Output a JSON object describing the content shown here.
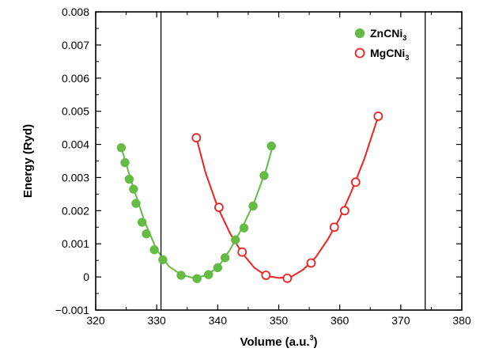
{
  "chart_data": {
    "type": "scatter",
    "title": "",
    "xlabel": "Volume (a.u.",
    "xlabel_sup": "3",
    "xlabel_close": ")",
    "ylabel": "Energy (Ryd)",
    "xlim": [
      320,
      380
    ],
    "ylim": [
      -0.001,
      0.008
    ],
    "x_ticks": [
      320,
      330,
      340,
      350,
      360,
      370,
      380
    ],
    "y_ticks": [
      -0.001,
      0,
      0.001,
      0.002,
      0.003,
      0.004,
      0.005,
      0.006,
      0.007,
      0.008
    ],
    "x_tick_labels": [
      "320",
      "330",
      "340",
      "350",
      "360",
      "370",
      "380"
    ],
    "y_tick_labels": [
      "−0.001",
      "0",
      "0.001",
      "0.002",
      "0.003",
      "0.004",
      "0.005",
      "0.006",
      "0.007",
      "0.008"
    ],
    "vertical_lines": [
      330.7,
      374
    ],
    "legend_position": "top-right",
    "series": [
      {
        "name": "ZnCNi",
        "name_sub": "3",
        "color": "#66bb44",
        "marker": "filled-circle",
        "points": [
          [
            324.2,
            0.0039
          ],
          [
            324.8,
            0.00345
          ],
          [
            325.5,
            0.00295
          ],
          [
            326.2,
            0.00265
          ],
          [
            326.6,
            0.00222
          ],
          [
            327.6,
            0.00165
          ],
          [
            328.3,
            0.0013
          ],
          [
            329.6,
            0.00082
          ],
          [
            331.0,
            0.00052
          ],
          [
            334.0,
            5e-05
          ],
          [
            336.6,
            -5e-05
          ],
          [
            338.5,
            7e-05
          ],
          [
            340.0,
            0.00028
          ],
          [
            341.2,
            0.00058
          ],
          [
            342.9,
            0.00112
          ],
          [
            344.3,
            0.00148
          ],
          [
            345.8,
            0.00214
          ],
          [
            347.6,
            0.00306
          ],
          [
            348.8,
            0.00395
          ]
        ],
        "fit": [
          [
            324.2,
            0.0039
          ],
          [
            326.0,
            0.0028
          ],
          [
            328.0,
            0.00168
          ],
          [
            330.0,
            0.00082
          ],
          [
            332.0,
            0.00032
          ],
          [
            334.0,
            7e-05
          ],
          [
            336.0,
            -3e-05
          ],
          [
            338.0,
            4e-05
          ],
          [
            340.0,
            0.00028
          ],
          [
            342.0,
            0.00082
          ],
          [
            344.0,
            0.00148
          ],
          [
            346.0,
            0.00226
          ],
          [
            348.0,
            0.00328
          ],
          [
            349.0,
            0.00395
          ]
        ]
      },
      {
        "name": "MgCNi",
        "name_sub": "3",
        "color": "#ee2222",
        "marker": "open-circle",
        "points": [
          [
            336.5,
            0.0042
          ],
          [
            340.2,
            0.0021
          ],
          [
            344.0,
            0.00075
          ],
          [
            347.9,
            5e-05
          ],
          [
            351.4,
            -4e-05
          ],
          [
            355.3,
            0.00042
          ],
          [
            359.1,
            0.0015
          ],
          [
            360.8,
            0.002
          ],
          [
            362.6,
            0.00286
          ],
          [
            366.3,
            0.00485
          ]
        ],
        "fit": [
          [
            336.5,
            0.0042
          ],
          [
            338.0,
            0.00315
          ],
          [
            340.0,
            0.0021
          ],
          [
            342.0,
            0.00132
          ],
          [
            344.0,
            0.00072
          ],
          [
            346.0,
            0.00028
          ],
          [
            348.0,
            3e-05
          ],
          [
            350.0,
            -3e-05
          ],
          [
            352.0,
            0.0
          ],
          [
            354.0,
            0.00022
          ],
          [
            356.0,
            0.00058
          ],
          [
            358.0,
            0.00112
          ],
          [
            360.0,
            0.00178
          ],
          [
            362.0,
            0.00262
          ],
          [
            364.0,
            0.00355
          ],
          [
            366.3,
            0.00485
          ]
        ]
      }
    ]
  }
}
